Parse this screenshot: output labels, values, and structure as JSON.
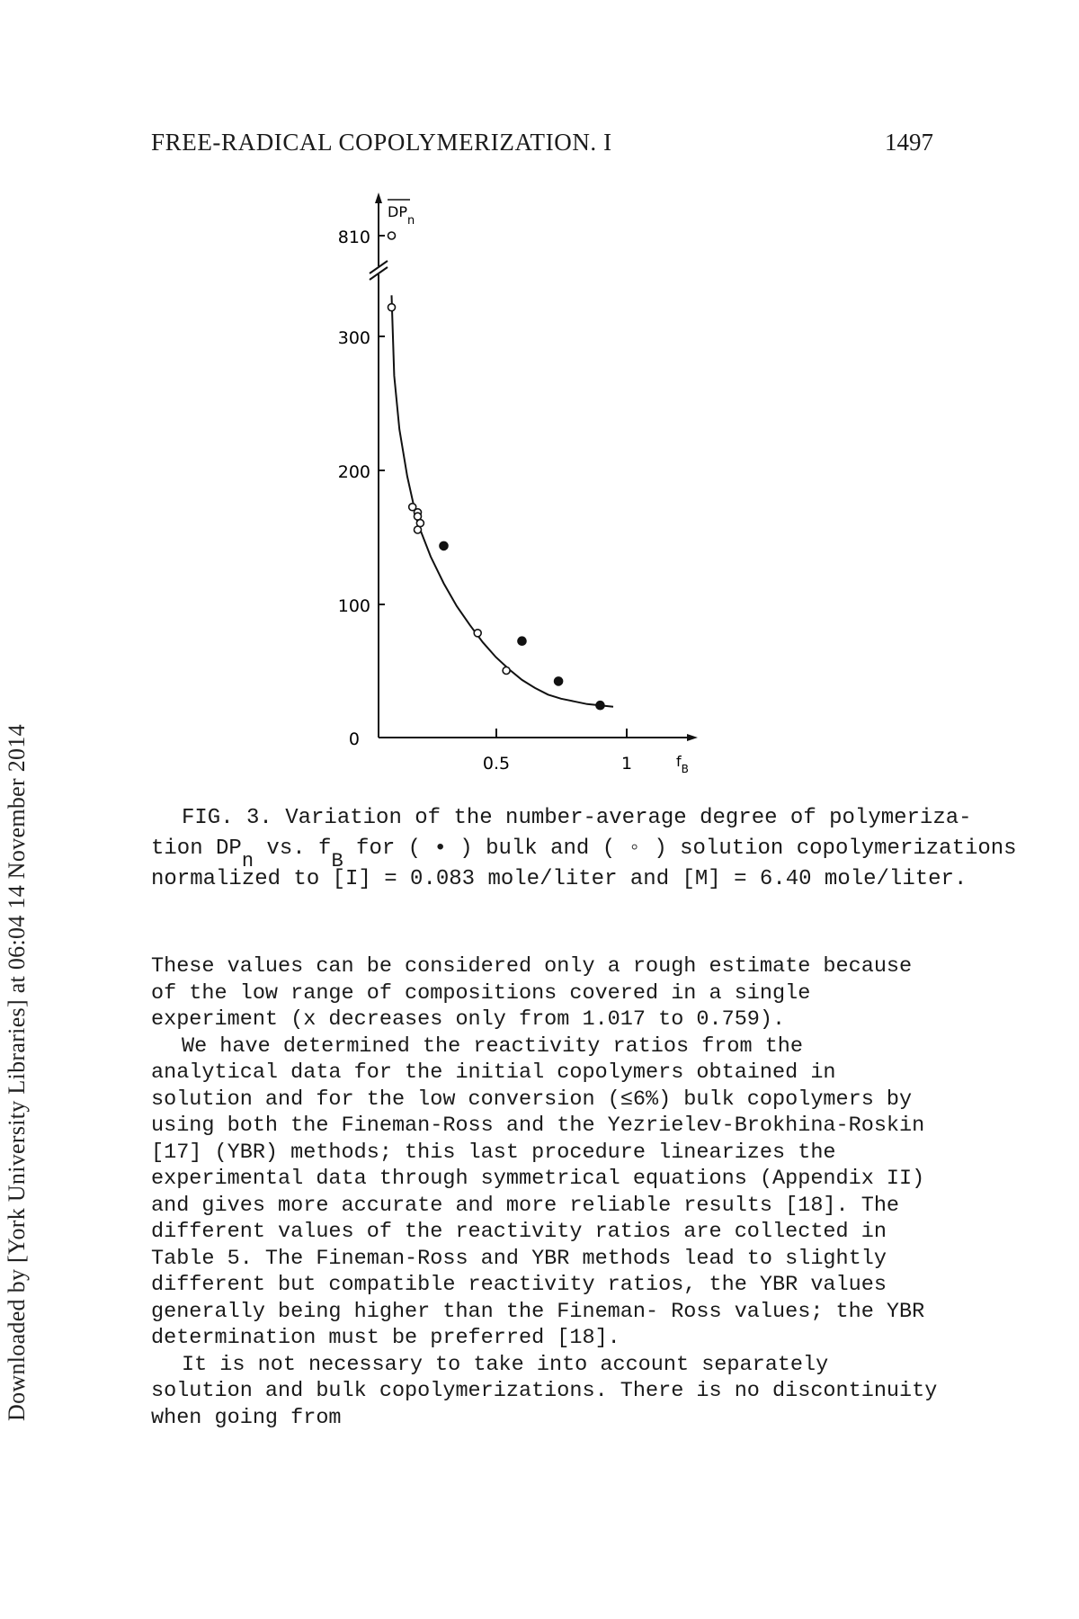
{
  "side_stamp": "Downloaded by [York University Libraries] at 06:04 14 November 2014",
  "header": {
    "title": "FREE-RADICAL COPOLYMERIZATION. I",
    "page_number": "1497"
  },
  "figure": {
    "y_axis_label": "DP",
    "y_axis_label_sub": "n",
    "x_axis_label": "f",
    "x_axis_label_sub": "B",
    "break_tick_label": "810",
    "y_tick_labels": [
      "300",
      "200",
      "100",
      "0"
    ],
    "x_tick_labels": [
      "0.5",
      "1"
    ]
  },
  "chart_data": {
    "type": "scatter",
    "xlabel": "fB",
    "ylabel": "DPn",
    "xlim": [
      0,
      1.25
    ],
    "ylim": [
      0,
      330
    ],
    "y_axis_break": {
      "below_break_max": 330,
      "above_break_value": 810
    },
    "x_ticks": [
      0.5,
      1
    ],
    "y_ticks": [
      0,
      100,
      200,
      300
    ],
    "series": [
      {
        "name": "bulk",
        "marker": "filled-circle",
        "points": [
          {
            "x": 0.25,
            "y": 143
          },
          {
            "x": 0.55,
            "y": 72
          },
          {
            "x": 0.69,
            "y": 42
          },
          {
            "x": 0.85,
            "y": 24
          }
        ]
      },
      {
        "name": "solution",
        "marker": "open-circle",
        "points": [
          {
            "x": 0.05,
            "y": 810
          },
          {
            "x": 0.05,
            "y": 321
          },
          {
            "x": 0.13,
            "y": 172
          },
          {
            "x": 0.15,
            "y": 168
          },
          {
            "x": 0.15,
            "y": 165
          },
          {
            "x": 0.16,
            "y": 160
          },
          {
            "x": 0.15,
            "y": 155
          },
          {
            "x": 0.38,
            "y": 78
          },
          {
            "x": 0.49,
            "y": 50
          }
        ]
      },
      {
        "name": "fitted curve",
        "marker": "line",
        "points": [
          {
            "x": 0.05,
            "y": 330
          },
          {
            "x": 0.06,
            "y": 270
          },
          {
            "x": 0.08,
            "y": 230
          },
          {
            "x": 0.11,
            "y": 195
          },
          {
            "x": 0.15,
            "y": 160
          },
          {
            "x": 0.2,
            "y": 135
          },
          {
            "x": 0.25,
            "y": 115
          },
          {
            "x": 0.3,
            "y": 98
          },
          {
            "x": 0.35,
            "y": 84
          },
          {
            "x": 0.4,
            "y": 71
          },
          {
            "x": 0.45,
            "y": 60
          },
          {
            "x": 0.5,
            "y": 51
          },
          {
            "x": 0.55,
            "y": 43
          },
          {
            "x": 0.6,
            "y": 37
          },
          {
            "x": 0.65,
            "y": 32
          },
          {
            "x": 0.7,
            "y": 29
          },
          {
            "x": 0.75,
            "y": 27
          },
          {
            "x": 0.8,
            "y": 25
          },
          {
            "x": 0.85,
            "y": 24
          },
          {
            "x": 0.9,
            "y": 23
          }
        ]
      }
    ]
  },
  "caption": {
    "line1": "FIG. 3. Variation of the number-average degree of polymeriza-",
    "line2_a": "tion DP",
    "line2_sub1": "n",
    "line2_b": " vs. f",
    "line2_sub2": "B",
    "line2_c": " for ( • ) bulk and ( ◦ ) solution copolymerizations",
    "line3": "normalized to [I] = 0.083 mole/liter and [M] = 6.40 mole/liter."
  },
  "body": {
    "p1": "These values can be considered only a rough estimate because of the low range of compositions covered in a single experiment (x decreases only from 1.017 to 0.759).",
    "p2": "We have determined the reactivity ratios from the analytical data for the initial copolymers obtained in solution and for the low conversion (≤6%) bulk copolymers by using both the Fineman-Ross and the Yezrielev-Brokhina-Roskin [17] (YBR) methods; this last procedure linearizes the experimental data through symmetrical equations (Appendix II) and gives more accurate and more reliable results [18]. The different values of the reactivity ratios are collected in Table 5. The Fineman-Ross and YBR methods lead to slightly different but compatible reactivity ratios, the YBR values generally being higher than the Fineman- Ross values; the YBR determination must be preferred [18].",
    "p3": "It is not necessary to take into account separately solution and bulk copolymerizations. There is no discontinuity when going from"
  }
}
